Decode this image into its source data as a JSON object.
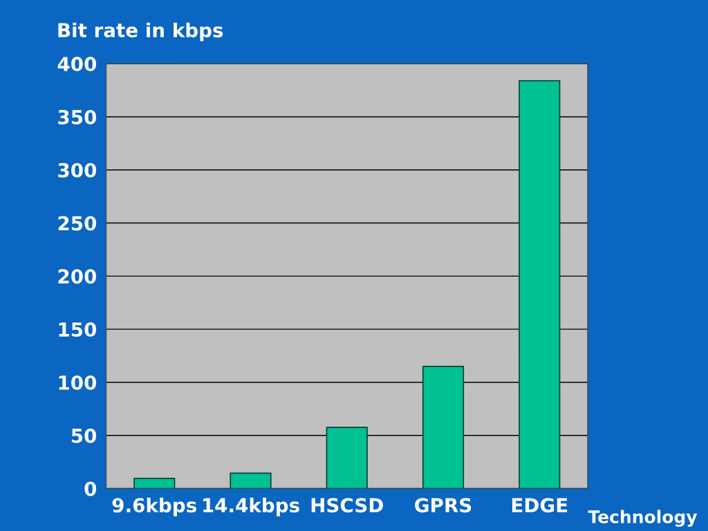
{
  "chart_data": {
    "type": "bar",
    "categories": [
      "9.6kbps",
      "14.4kbps",
      "HSCSD",
      "GPRS",
      "EDGE"
    ],
    "values": [
      9.6,
      14.4,
      57.6,
      115,
      384
    ],
    "color": "#00c094",
    "ylabel": "Bit rate in kbps",
    "xlabel": "Technology",
    "ylim": [
      0,
      400
    ],
    "yticks": [
      0,
      50,
      100,
      150,
      200,
      250,
      300,
      350,
      400
    ],
    "grid": "y",
    "legend": false
  }
}
